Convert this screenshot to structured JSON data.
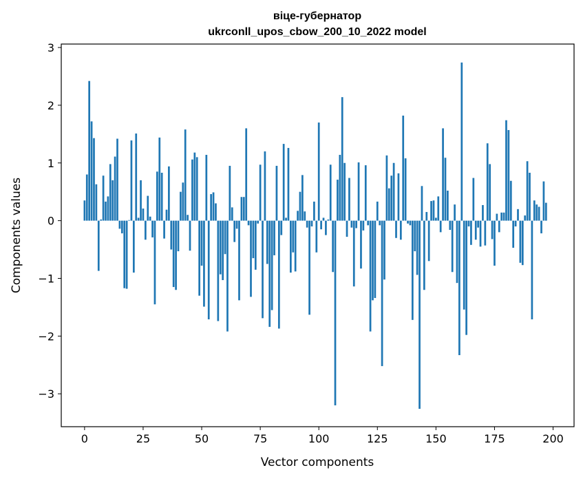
{
  "chart_data": {
    "type": "bar",
    "title_line1": "віце-губернатор",
    "title_line2": "ukrconll_upos_cbow_200_10_2022 model",
    "xlabel": "Vector components",
    "ylabel": "Components values",
    "xlim": [
      -9.95,
      208.95
    ],
    "ylim": [
      -3.57,
      3.06
    ],
    "xticks": [
      0,
      25,
      50,
      75,
      100,
      125,
      150,
      175,
      200
    ],
    "xtick_labels": [
      "0",
      "25",
      "50",
      "75",
      "100",
      "125",
      "150",
      "175",
      "200"
    ],
    "yticks": [
      -3,
      -2,
      -1,
      0,
      1,
      2,
      3
    ],
    "ytick_labels": [
      "−3",
      "−2",
      "−1",
      "0",
      "1",
      "2",
      "3"
    ],
    "grid": false,
    "bar_color": "#1f77b4",
    "values": [
      0.35,
      0.8,
      2.42,
      1.72,
      1.43,
      0.63,
      -0.87,
      0.02,
      0.78,
      0.33,
      0.42,
      0.98,
      0.7,
      1.11,
      1.42,
      -0.14,
      -0.22,
      -1.17,
      -1.18,
      0.01,
      1.39,
      -0.9,
      1.51,
      0.05,
      0.7,
      0.21,
      -0.33,
      0.43,
      0.07,
      -0.29,
      -1.45,
      0.85,
      1.44,
      0.83,
      -0.31,
      0.19,
      0.94,
      -0.5,
      -1.15,
      -1.2,
      -0.53,
      0.5,
      0.66,
      1.58,
      0.1,
      -0.52,
      1.06,
      1.18,
      1.1,
      -1.3,
      -0.78,
      -1.49,
      1.14,
      -1.71,
      0.46,
      0.49,
      0.3,
      -1.74,
      -0.93,
      -1.03,
      -0.58,
      -1.92,
      0.95,
      0.23,
      -0.37,
      -0.14,
      -1.38,
      0.41,
      0.41,
      1.6,
      -0.08,
      -1.32,
      -0.65,
      -0.85,
      -0.05,
      0.97,
      -1.69,
      1.2,
      -0.75,
      -1.84,
      -1.55,
      -0.6,
      0.95,
      -1.87,
      -0.25,
      1.33,
      0.05,
      1.26,
      -0.9,
      -0.55,
      -0.88,
      0.17,
      0.5,
      0.79,
      0.16,
      -0.12,
      -1.63,
      -0.1,
      0.33,
      -0.55,
      1.7,
      -0.15,
      0.05,
      -0.25,
      0.02,
      0.97,
      -0.89,
      -3.2,
      0.71,
      1.14,
      2.14,
      1.0,
      -0.28,
      0.74,
      -0.12,
      -1.14,
      -0.13,
      1.01,
      -0.83,
      -0.17,
      0.96,
      -0.08,
      -1.92,
      -1.38,
      -1.34,
      0.33,
      -0.08,
      -2.52,
      -1.02,
      1.13,
      0.56,
      0.78,
      1.0,
      -0.3,
      0.82,
      -0.33,
      1.82,
      1.08,
      -0.05,
      -0.08,
      -1.72,
      -0.53,
      -0.94,
      -3.26,
      0.6,
      -1.2,
      0.15,
      -0.7,
      0.34,
      0.35,
      0.05,
      0.42,
      -0.2,
      1.6,
      1.09,
      0.52,
      -0.16,
      -0.89,
      0.28,
      -1.08,
      -2.33,
      2.74,
      -1.54,
      -1.98,
      -0.1,
      -0.42,
      0.74,
      -0.33,
      -0.12,
      -0.45,
      0.27,
      -0.43,
      1.34,
      0.98,
      -0.32,
      -0.78,
      0.12,
      -0.2,
      0.14,
      0.14,
      1.74,
      1.57,
      0.69,
      -0.47,
      -0.1,
      0.2,
      -0.73,
      -0.77,
      0.09,
      1.03,
      0.83,
      -1.71,
      0.35,
      0.28,
      0.24,
      -0.22,
      0.68,
      0.31
    ]
  }
}
